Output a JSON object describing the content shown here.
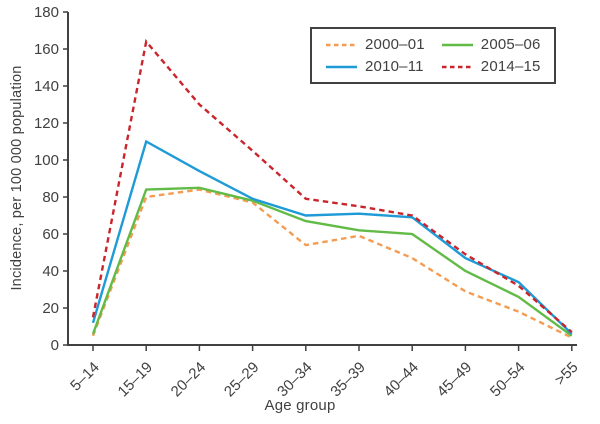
{
  "figure": {
    "y_axis_title": "Incidence, per 100 000 population",
    "x_axis_title": "Age group"
  },
  "colors": {
    "axis": "#414042",
    "series_2000_01": "#F49C51",
    "series_2005_06": "#62BB46",
    "series_2010_11": "#1E9BD7",
    "series_2014_15": "#C9252C"
  },
  "chart_data": {
    "type": "line",
    "title": "",
    "xlabel": "Age group",
    "ylabel": "Incidence, per 100 000 population",
    "categories": [
      "5–14",
      "15–19",
      "20–24",
      "25–29",
      "30–34",
      "35–39",
      "40–44",
      "45–49",
      "50–54",
      ">55"
    ],
    "series": [
      {
        "name": "2000–01",
        "color": "#F49C51",
        "style": "dashed",
        "values": [
          5,
          80,
          84,
          77,
          54,
          59,
          47,
          29,
          18,
          4
        ]
      },
      {
        "name": "2005–06",
        "color": "#62BB46",
        "style": "solid",
        "values": [
          6,
          84,
          85,
          78,
          67,
          62,
          60,
          40,
          26,
          5
        ]
      },
      {
        "name": "2010–11",
        "color": "#1E9BD7",
        "style": "solid",
        "values": [
          12,
          110,
          94,
          79,
          70,
          71,
          69,
          47,
          34,
          6
        ]
      },
      {
        "name": "2014–15",
        "color": "#C9252C",
        "style": "dashed",
        "values": [
          15,
          164,
          130,
          105,
          79,
          75,
          70,
          49,
          32,
          7
        ]
      }
    ],
    "ylim": [
      0,
      180
    ],
    "ytick_step": 20,
    "yticks": [
      "0",
      "20",
      "40",
      "60",
      "80",
      "100",
      "120",
      "140",
      "160",
      "180"
    ],
    "grid": false,
    "legend_position": "top-right-inside",
    "legend_columns": 2
  }
}
